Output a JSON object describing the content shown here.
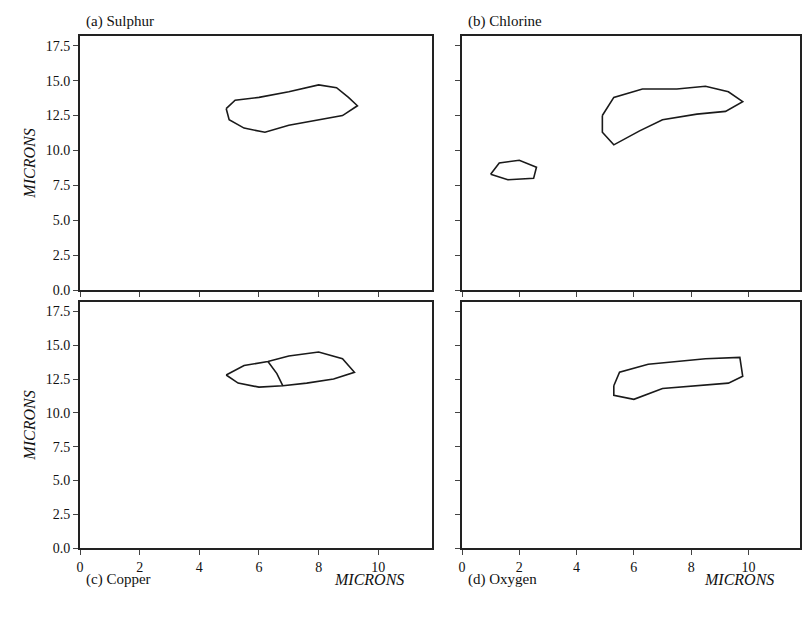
{
  "chart_data": [
    {
      "type": "line",
      "title": "(a) Sulphur",
      "y_label": "MICRONS",
      "tick_labels": "y",
      "color": "#1a1a1a",
      "xlim": [
        0,
        11.8
      ],
      "ylim": [
        0,
        18.2
      ],
      "xticks": [
        0,
        2,
        4,
        6,
        8,
        10
      ],
      "yticks": [
        {
          "value": 0,
          "label": "0.0"
        },
        2.5,
        {
          "value": 5,
          "label": "5.0"
        },
        7.5,
        {
          "value": 10,
          "label": "10.0"
        },
        12.5,
        {
          "value": 15,
          "label": "15.0"
        },
        17.5
      ],
      "series": [
        {
          "x": [
            4.9,
            5.2,
            6.0,
            7.0,
            8.0,
            8.6,
            9.0,
            9.3,
            8.8,
            8.0,
            7.0,
            6.2,
            5.5,
            5.0,
            4.9
          ],
          "y": [
            13.0,
            13.6,
            13.8,
            14.2,
            14.7,
            14.5,
            13.8,
            13.2,
            12.5,
            12.2,
            11.8,
            11.3,
            11.6,
            12.2,
            13.0
          ]
        }
      ]
    },
    {
      "type": "line",
      "title": "(b) Chlorine",
      "tick_labels": false,
      "color": "#1a1a1a",
      "xlim": [
        0,
        11.8
      ],
      "ylim": [
        0,
        18.2
      ],
      "xticks": [
        0,
        2,
        4,
        6,
        8,
        10
      ],
      "yticks": [
        {
          "value": 0,
          "label": "0.0"
        },
        2.5,
        {
          "value": 5,
          "label": "5.0"
        },
        7.5,
        {
          "value": 10,
          "label": "10.0"
        },
        12.5,
        {
          "value": 15,
          "label": "15.0"
        },
        17.5
      ],
      "series": [
        {
          "x": [
            4.9,
            5.3,
            6.3,
            7.5,
            8.5,
            9.3,
            9.8,
            9.2,
            8.2,
            7.0,
            6.2,
            5.3,
            4.9,
            4.9
          ],
          "y": [
            12.5,
            13.8,
            14.4,
            14.4,
            14.6,
            14.2,
            13.5,
            12.8,
            12.6,
            12.2,
            11.4,
            10.4,
            11.3,
            12.5
          ]
        },
        {
          "x": [
            1.0,
            1.3,
            2.0,
            2.6,
            2.5,
            1.6,
            1.0
          ],
          "y": [
            8.3,
            9.1,
            9.3,
            8.8,
            8.0,
            7.9,
            8.3
          ]
        }
      ]
    },
    {
      "type": "line",
      "title": "(c) Copper",
      "x_label": "MICRONS",
      "y_label": "MICRONS",
      "color": "#1a1a1a",
      "xlim": [
        0,
        11.8
      ],
      "ylim": [
        0,
        18.2
      ],
      "xticks": [
        0,
        2,
        4,
        6,
        8,
        10
      ],
      "yticks": [
        {
          "value": 0,
          "label": "0.0"
        },
        2.5,
        {
          "value": 5,
          "label": "5.0"
        },
        7.5,
        {
          "value": 10,
          "label": "10.0"
        },
        12.5,
        {
          "value": 15,
          "label": "15.0"
        },
        17.5
      ],
      "series": [
        {
          "x": [
            4.9,
            5.5,
            6.3,
            7.0,
            8.0,
            8.8,
            9.2,
            8.5,
            7.6,
            6.8,
            6.0,
            5.3,
            4.9
          ],
          "y": [
            12.8,
            13.5,
            13.8,
            14.2,
            14.5,
            14.0,
            13.0,
            12.5,
            12.2,
            12.0,
            11.9,
            12.2,
            12.8
          ]
        },
        {
          "x": [
            6.3,
            6.6,
            6.8
          ],
          "y": [
            13.8,
            12.9,
            12.0
          ]
        }
      ]
    },
    {
      "type": "line",
      "title": "(d) Oxygen",
      "x_label": "MICRONS",
      "tick_labels": "x",
      "color": "#1a1a1a",
      "xlim": [
        0,
        11.8
      ],
      "ylim": [
        0,
        18.2
      ],
      "xticks": [
        0,
        2,
        4,
        6,
        8,
        10
      ],
      "yticks": [
        {
          "value": 0,
          "label": "0.0"
        },
        2.5,
        {
          "value": 5,
          "label": "5.0"
        },
        7.5,
        {
          "value": 10,
          "label": "10.0"
        },
        12.5,
        {
          "value": 15,
          "label": "15.0"
        },
        17.5
      ],
      "series": [
        {
          "x": [
            5.3,
            5.5,
            6.5,
            7.5,
            8.5,
            9.7,
            9.8,
            9.3,
            8.2,
            7.0,
            6.0,
            5.3,
            5.3
          ],
          "y": [
            12.0,
            13.0,
            13.6,
            13.8,
            14.0,
            14.1,
            12.7,
            12.2,
            12.0,
            11.8,
            11.0,
            11.3,
            12.0
          ]
        }
      ]
    }
  ]
}
